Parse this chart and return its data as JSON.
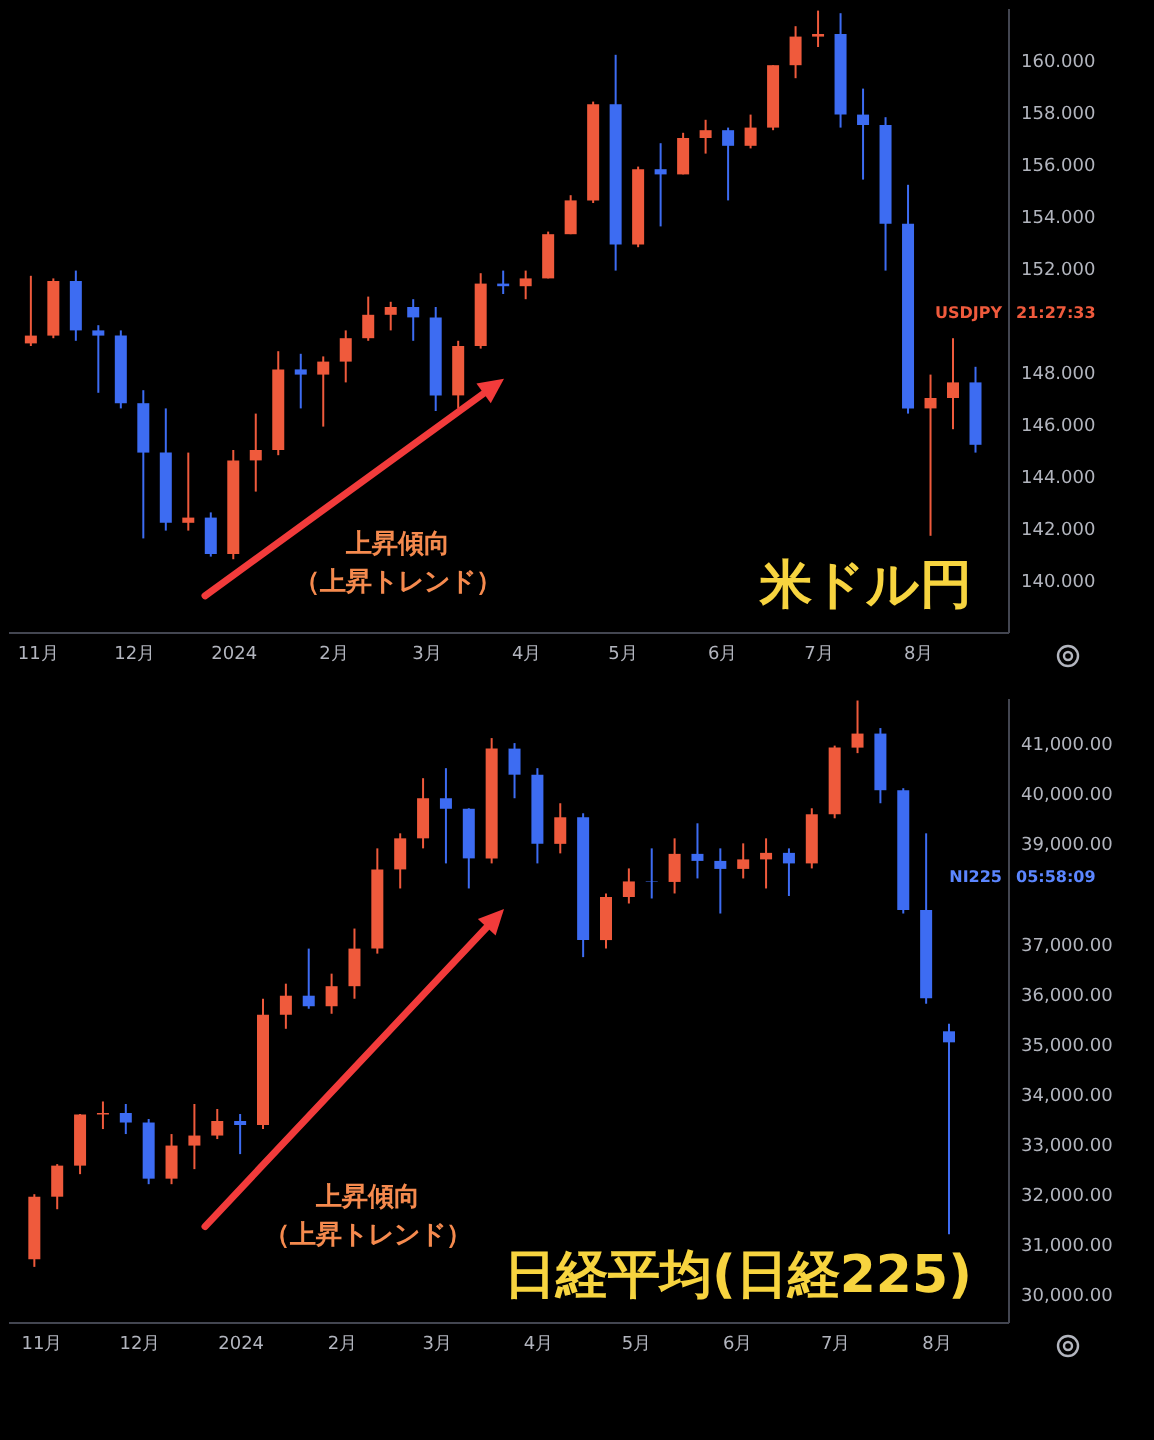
{
  "chart_data": [
    {
      "type": "candlestick",
      "title": "米ドル円",
      "annotations": [
        "上昇傾向",
        "（上昇トレンド）",
        "USDJPY",
        "21:27:33"
      ],
      "x": [
        "2023-10-30",
        "2023-11-06",
        "2023-11-13",
        "2023-11-20",
        "2023-11-27",
        "2023-12-04",
        "2023-12-11",
        "2023-12-18",
        "2023-12-25",
        "2024-01-01",
        "2024-01-08",
        "2024-01-15",
        "2024-01-22",
        "2024-01-29",
        "2024-02-05",
        "2024-02-12",
        "2024-02-19",
        "2024-02-26",
        "2024-03-04",
        "2024-03-11",
        "2024-03-18",
        "2024-03-25",
        "2024-04-01",
        "2024-04-08",
        "2024-04-15",
        "2024-04-22",
        "2024-04-29",
        "2024-05-06",
        "2024-05-13",
        "2024-05-20",
        "2024-05-27",
        "2024-06-03",
        "2024-06-10",
        "2024-06-17",
        "2024-06-24",
        "2024-07-01",
        "2024-07-08",
        "2024-07-15",
        "2024-07-22",
        "2024-07-29",
        "2024-08-05",
        "2024-08-12",
        "2024-08-19"
      ],
      "ohlc": [
        [
          149.1,
          151.7,
          149.0,
          149.4
        ],
        [
          149.4,
          151.6,
          149.3,
          151.5
        ],
        [
          151.5,
          151.9,
          149.2,
          149.6
        ],
        [
          149.6,
          149.8,
          147.2,
          149.4
        ],
        [
          149.4,
          149.6,
          146.6,
          146.8
        ],
        [
          146.8,
          147.3,
          141.6,
          144.9
        ],
        [
          144.9,
          146.6,
          141.9,
          142.2
        ],
        [
          142.2,
          144.9,
          141.9,
          142.4
        ],
        [
          142.4,
          142.6,
          140.9,
          141.0
        ],
        [
          141.0,
          145.0,
          140.8,
          144.6
        ],
        [
          144.6,
          146.4,
          143.4,
          145.0
        ],
        [
          145.0,
          148.8,
          144.8,
          148.1
        ],
        [
          148.1,
          148.7,
          146.6,
          147.9
        ],
        [
          147.9,
          148.6,
          145.9,
          148.4
        ],
        [
          148.4,
          149.6,
          147.6,
          149.3
        ],
        [
          149.3,
          150.9,
          149.2,
          150.2
        ],
        [
          150.2,
          150.7,
          149.6,
          150.5
        ],
        [
          150.5,
          150.8,
          149.2,
          150.1
        ],
        [
          150.1,
          150.5,
          146.5,
          147.1
        ],
        [
          147.1,
          149.2,
          146.6,
          149.0
        ],
        [
          149.0,
          151.8,
          148.9,
          151.4
        ],
        [
          151.4,
          151.9,
          151.0,
          151.3
        ],
        [
          151.3,
          151.9,
          150.8,
          151.6
        ],
        [
          151.6,
          153.4,
          151.6,
          153.3
        ],
        [
          153.3,
          154.8,
          153.3,
          154.6
        ],
        [
          154.6,
          158.4,
          154.5,
          158.3
        ],
        [
          158.3,
          160.2,
          151.9,
          152.9
        ],
        [
          152.9,
          155.9,
          152.8,
          155.8
        ],
        [
          155.8,
          156.8,
          153.6,
          155.6
        ],
        [
          155.6,
          157.2,
          155.6,
          157.0
        ],
        [
          157.0,
          157.7,
          156.4,
          157.3
        ],
        [
          157.3,
          157.4,
          154.6,
          156.7
        ],
        [
          156.7,
          157.9,
          156.6,
          157.4
        ],
        [
          157.4,
          159.8,
          157.3,
          159.8
        ],
        [
          159.8,
          161.3,
          159.3,
          160.9
        ],
        [
          160.9,
          161.9,
          160.5,
          161.0
        ],
        [
          161.0,
          161.8,
          157.4,
          157.9
        ],
        [
          157.9,
          158.9,
          155.4,
          157.5
        ],
        [
          157.5,
          157.8,
          151.9,
          153.7
        ],
        [
          153.7,
          155.2,
          146.4,
          146.6
        ],
        [
          146.6,
          147.9,
          141.7,
          147.0
        ],
        [
          147.0,
          149.3,
          145.8,
          147.6
        ],
        [
          147.6,
          148.2,
          144.9,
          145.2
        ]
      ],
      "colors": [
        "#ef5a3c",
        "#ef5a3c",
        "#3d6cf2",
        "#3d6cf2",
        "#3d6cf2",
        "#3d6cf2",
        "#3d6cf2",
        "#ef5a3c",
        "#3d6cf2",
        "#ef5a3c",
        "#ef5a3c",
        "#ef5a3c",
        "#3d6cf2",
        "#ef5a3c",
        "#ef5a3c",
        "#ef5a3c",
        "#ef5a3c",
        "#3d6cf2",
        "#3d6cf2",
        "#ef5a3c",
        "#ef5a3c",
        "#3d6cf2",
        "#ef5a3c",
        "#ef5a3c",
        "#ef5a3c",
        "#ef5a3c",
        "#3d6cf2",
        "#ef5a3c",
        "#3d6cf2",
        "#ef5a3c",
        "#ef5a3c",
        "#3d6cf2",
        "#ef5a3c",
        "#ef5a3c",
        "#ef5a3c",
        "#ef5a3c",
        "#3d6cf2",
        "#3d6cf2",
        "#3d6cf2",
        "#3d6cf2",
        "#ef5a3c",
        "#ef5a3c",
        "#3d6cf2"
      ],
      "xlim": [
        "2023-10-26",
        "2024-08-26"
      ],
      "xticks": [
        {
          "value": "2023-11-01",
          "label": "11月"
        },
        {
          "value": "2023-12-01",
          "label": "12月"
        },
        {
          "value": "2024-01-01",
          "label": "2024"
        },
        {
          "value": "2024-02-01",
          "label": "2月"
        },
        {
          "value": "2024-03-01",
          "label": "3月"
        },
        {
          "value": "2024-04-01",
          "label": "4月"
        },
        {
          "value": "2024-05-01",
          "label": "5月"
        },
        {
          "value": "2024-06-01",
          "label": "6月"
        },
        {
          "value": "2024-07-01",
          "label": "7月"
        },
        {
          "value": "2024-08-01",
          "label": "8月"
        }
      ],
      "ylim": [
        138,
        162
      ],
      "yticks": [
        {
          "value": 140,
          "label": "140.000"
        },
        {
          "value": 142,
          "label": "142.000"
        },
        {
          "value": 144,
          "label": "144.000"
        },
        {
          "value": 146,
          "label": "146.000"
        },
        {
          "value": 148,
          "label": "148.000"
        },
        {
          "value": 152,
          "label": "152.000"
        },
        {
          "value": 154,
          "label": "154.000"
        },
        {
          "value": 156,
          "label": "156.000"
        },
        {
          "value": 158,
          "label": "158.000"
        },
        {
          "value": 160,
          "label": "160.000"
        }
      ]
    },
    {
      "type": "candlestick",
      "title": "日経平均(日経225)",
      "annotations": [
        "上昇傾向",
        "（上昇トレンド）",
        "NI225",
        "05:58:09"
      ],
      "x": [
        "2023-10-30",
        "2023-11-06",
        "2023-11-13",
        "2023-11-20",
        "2023-11-27",
        "2023-12-04",
        "2023-12-11",
        "2023-12-18",
        "2023-12-25",
        "2024-01-01",
        "2024-01-08",
        "2024-01-15",
        "2024-01-22",
        "2024-01-29",
        "2024-02-05",
        "2024-02-12",
        "2024-02-19",
        "2024-02-26",
        "2024-03-04",
        "2024-03-11",
        "2024-03-18",
        "2024-03-25",
        "2024-04-01",
        "2024-04-08",
        "2024-04-15",
        "2024-04-22",
        "2024-04-29",
        "2024-05-06",
        "2024-05-13",
        "2024-05-20",
        "2024-05-27",
        "2024-06-03",
        "2024-06-10",
        "2024-06-17",
        "2024-06-24",
        "2024-07-01",
        "2024-07-08",
        "2024-07-15",
        "2024-07-22",
        "2024-07-29",
        "2024-08-05"
      ],
      "ohlc": [
        [
          30700,
          32000,
          30550,
          31950
        ],
        [
          31950,
          32600,
          31700,
          32570
        ],
        [
          32570,
          33600,
          32400,
          33590
        ],
        [
          33590,
          33850,
          33300,
          33620
        ],
        [
          33620,
          33800,
          33200,
          33430
        ],
        [
          33430,
          33500,
          32200,
          32310
        ],
        [
          32310,
          33200,
          32200,
          32970
        ],
        [
          32970,
          33800,
          32500,
          33170
        ],
        [
          33170,
          33700,
          33100,
          33460
        ],
        [
          33460,
          33600,
          32800,
          33380
        ],
        [
          33380,
          35900,
          33300,
          35580
        ],
        [
          35580,
          36200,
          35300,
          35960
        ],
        [
          35960,
          36900,
          35700,
          35750
        ],
        [
          35750,
          36400,
          35600,
          36150
        ],
        [
          36150,
          37300,
          35900,
          36900
        ],
        [
          36900,
          38900,
          36800,
          38480
        ],
        [
          38480,
          39200,
          38100,
          39100
        ],
        [
          39100,
          40300,
          38900,
          39900
        ],
        [
          39900,
          40500,
          38600,
          39690
        ],
        [
          39690,
          39700,
          38100,
          38700
        ],
        [
          38700,
          41100,
          38600,
          40890
        ],
        [
          40890,
          41000,
          39900,
          40370
        ],
        [
          40370,
          40500,
          38600,
          38990
        ],
        [
          38990,
          39800,
          38800,
          39520
        ],
        [
          39520,
          39600,
          36730,
          37070
        ],
        [
          37070,
          38000,
          36900,
          37930
        ],
        [
          37930,
          38500,
          37800,
          38240
        ],
        [
          38240,
          38900,
          37900,
          38230
        ],
        [
          38230,
          39100,
          38000,
          38790
        ],
        [
          38790,
          39400,
          38300,
          38650
        ],
        [
          38650,
          38900,
          37600,
          38490
        ],
        [
          38490,
          39000,
          38300,
          38680
        ],
        [
          38680,
          39100,
          38100,
          38810
        ],
        [
          38810,
          38900,
          37950,
          38600
        ],
        [
          38600,
          39700,
          38500,
          39580
        ],
        [
          39580,
          40950,
          39500,
          40910
        ],
        [
          40910,
          41850,
          40800,
          41190
        ],
        [
          41190,
          41300,
          39800,
          40060
        ],
        [
          40060,
          40100,
          37600,
          37670
        ],
        [
          37670,
          39200,
          35800,
          35910
        ],
        [
          35250,
          35400,
          31200,
          35030
        ]
      ],
      "colors": [
        "#ef5a3c",
        "#ef5a3c",
        "#ef5a3c",
        "#ef5a3c",
        "#3d6cf2",
        "#3d6cf2",
        "#ef5a3c",
        "#ef5a3c",
        "#ef5a3c",
        "#3d6cf2",
        "#ef5a3c",
        "#ef5a3c",
        "#3d6cf2",
        "#ef5a3c",
        "#ef5a3c",
        "#ef5a3c",
        "#ef5a3c",
        "#ef5a3c",
        "#3d6cf2",
        "#3d6cf2",
        "#ef5a3c",
        "#3d6cf2",
        "#3d6cf2",
        "#ef5a3c",
        "#3d6cf2",
        "#ef5a3c",
        "#ef5a3c",
        "#3d6cf2",
        "#ef5a3c",
        "#3d6cf2",
        "#3d6cf2",
        "#ef5a3c",
        "#ef5a3c",
        "#3d6cf2",
        "#ef5a3c",
        "#ef5a3c",
        "#ef5a3c",
        "#3d6cf2",
        "#3d6cf2",
        "#3d6cf2",
        "#3d6cf2"
      ],
      "xlim": [
        "2023-10-25",
        "2024-08-20"
      ],
      "xticks": [
        {
          "value": "2023-11-01",
          "label": "11月"
        },
        {
          "value": "2023-12-01",
          "label": "12月"
        },
        {
          "value": "2024-01-01",
          "label": "2024"
        },
        {
          "value": "2024-02-01",
          "label": "2月"
        },
        {
          "value": "2024-03-01",
          "label": "3月"
        },
        {
          "value": "2024-04-01",
          "label": "4月"
        },
        {
          "value": "2024-05-01",
          "label": "5月"
        },
        {
          "value": "2024-06-01",
          "label": "6月"
        },
        {
          "value": "2024-07-01",
          "label": "7月"
        },
        {
          "value": "2024-08-01",
          "label": "8月"
        }
      ],
      "ylim": [
        29450,
        41900
      ],
      "yticks": [
        {
          "value": 30000,
          "label": "30,000.00"
        },
        {
          "value": 31000,
          "label": "31,000.00"
        },
        {
          "value": 32000,
          "label": "32,000.00"
        },
        {
          "value": 33000,
          "label": "33,000.00"
        },
        {
          "value": 34000,
          "label": "34,000.00"
        },
        {
          "value": 35000,
          "label": "35,000.00"
        },
        {
          "value": 36000,
          "label": "36,000.00"
        },
        {
          "value": 37000,
          "label": "37,000.00"
        },
        {
          "value": 39000,
          "label": "39,000.00"
        },
        {
          "value": 40000,
          "label": "40,000.00"
        },
        {
          "value": 41000,
          "label": "41,000.00"
        }
      ]
    }
  ]
}
